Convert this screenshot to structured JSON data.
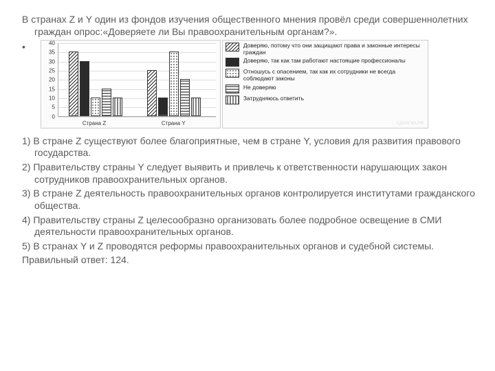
{
  "question": "В странах Z и Y один из фондов изучения общественного мнения провёл среди совершеннолетних граждан опрос:«Доверяете ли Вы правоохранительным органам?».",
  "chart": {
    "type": "bar",
    "categories": [
      "Страна Z",
      "Страна Y"
    ],
    "ylim": [
      0,
      40
    ],
    "ytick_step": 5,
    "yticks": [
      0,
      5,
      10,
      15,
      20,
      25,
      30,
      35,
      40
    ],
    "background_color": "#fbfbfb",
    "grid_color": "#dddddd",
    "bar_border": "#333333",
    "series": [
      {
        "label": "Доверяю, потому что они защищают права и законные интересы граждан",
        "pattern": "diag",
        "values": [
          35,
          25
        ]
      },
      {
        "label": "Доверяю, так как там работают настоящие профессионалы",
        "pattern": "solid",
        "values": [
          30,
          10
        ]
      },
      {
        "label": "Отношусь с опасением, так как их сотрудники не всегда соблюдают законы",
        "pattern": "dots",
        "values": [
          10,
          35
        ]
      },
      {
        "label": "Не доверяю",
        "pattern": "hstripe",
        "values": [
          15,
          20
        ]
      },
      {
        "label": "Затрудняюсь ответить",
        "pattern": "vhatch",
        "values": [
          10,
          10
        ]
      }
    ],
    "label_fontsize": 8
  },
  "answers": [
    "1) В стране Z существуют более благоприятные, чем в стране Y, условия для развития правового государства.",
    "2) Правительству страны Y следует выявить и привлечь к ответственности нарушающих закон сотрудников правоохранительных органов.",
    "3) В стране Z деятельность правоохранительных органов контролируется институтами гражданского общества.",
    "4) Правительству страны Z целесообразно организовать более подробное освещение в СМИ деятельности правоохранительных органов.",
    "5) В странах Y и Z проводятся реформы правоохранительных органов и судебной системы."
  ],
  "correct": "Правильный ответ: 124.",
  "watermark": "СДАМГИА.РФ"
}
